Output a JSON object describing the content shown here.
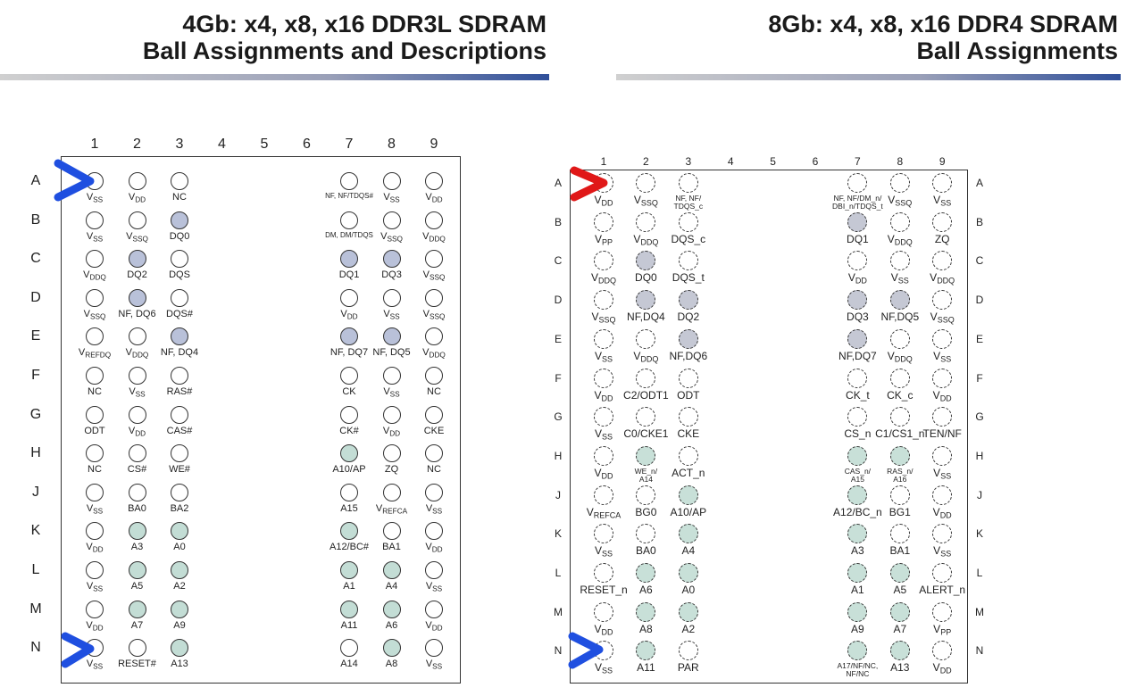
{
  "panels": [
    {
      "title_lines": [
        "4Gb: x4, x8, x16 DDR3L SDRAM",
        "Ball Assignments and Descriptions"
      ],
      "columns": [
        "1",
        "2",
        "3",
        "4",
        "5",
        "6",
        "7",
        "8",
        "9"
      ],
      "ball_border": "solid",
      "rows": [
        {
          "letter": "A",
          "balls": [
            {
              "label": "VSS"
            },
            {
              "label": "VDD"
            },
            {
              "label": "NC"
            },
            null,
            null,
            null,
            {
              "label": "NF, NF/TDQS#"
            },
            {
              "label": "VSS"
            },
            {
              "label": "VDD"
            }
          ]
        },
        {
          "letter": "B",
          "balls": [
            {
              "label": "VSS"
            },
            {
              "label": "VSSQ"
            },
            {
              "label": "DQ0",
              "fill": "#b9c1d9"
            },
            null,
            null,
            null,
            {
              "label": "DM, DM/TDQS"
            },
            {
              "label": "VSSQ"
            },
            {
              "label": "VDDQ"
            }
          ]
        },
        {
          "letter": "C",
          "balls": [
            {
              "label": "VDDQ"
            },
            {
              "label": "DQ2",
              "fill": "#b9c1d9"
            },
            {
              "label": "DQS"
            },
            null,
            null,
            null,
            {
              "label": "DQ1",
              "fill": "#b9c1d9"
            },
            {
              "label": "DQ3",
              "fill": "#b9c1d9"
            },
            {
              "label": "VSSQ"
            }
          ]
        },
        {
          "letter": "D",
          "balls": [
            {
              "label": "VSSQ"
            },
            {
              "label": "NF, DQ6",
              "fill": "#b9c1d9"
            },
            {
              "label": "DQS#"
            },
            null,
            null,
            null,
            {
              "label": "VDD"
            },
            {
              "label": "VSS"
            },
            {
              "label": "VSSQ"
            }
          ]
        },
        {
          "letter": "E",
          "balls": [
            {
              "label": "VREFDQ"
            },
            {
              "label": "VDDQ"
            },
            {
              "label": "NF, DQ4",
              "fill": "#b9c1d9"
            },
            null,
            null,
            null,
            {
              "label": "NF, DQ7",
              "fill": "#b9c1d9"
            },
            {
              "label": "NF, DQ5",
              "fill": "#b9c1d9"
            },
            {
              "label": "VDDQ"
            }
          ]
        },
        {
          "letter": "F",
          "balls": [
            {
              "label": "NC"
            },
            {
              "label": "VSS"
            },
            {
              "label": "RAS#"
            },
            null,
            null,
            null,
            {
              "label": "CK"
            },
            {
              "label": "VSS"
            },
            {
              "label": "NC"
            }
          ]
        },
        {
          "letter": "G",
          "balls": [
            {
              "label": "ODT"
            },
            {
              "label": "VDD"
            },
            {
              "label": "CAS#"
            },
            null,
            null,
            null,
            {
              "label": "CK#"
            },
            {
              "label": "VDD"
            },
            {
              "label": "CKE"
            }
          ]
        },
        {
          "letter": "H",
          "balls": [
            {
              "label": "NC"
            },
            {
              "label": "CS#"
            },
            {
              "label": "WE#"
            },
            null,
            null,
            null,
            {
              "label": "A10/AP",
              "fill": "#c3ddd5"
            },
            {
              "label": "ZQ"
            },
            {
              "label": "NC"
            }
          ]
        },
        {
          "letter": "J",
          "balls": [
            {
              "label": "VSS"
            },
            {
              "label": "BA0"
            },
            {
              "label": "BA2"
            },
            null,
            null,
            null,
            {
              "label": "A15"
            },
            {
              "label": "VREFCA"
            },
            {
              "label": "VSS"
            }
          ]
        },
        {
          "letter": "K",
          "balls": [
            {
              "label": "VDD"
            },
            {
              "label": "A3",
              "fill": "#c3ddd5"
            },
            {
              "label": "A0",
              "fill": "#c3ddd5"
            },
            null,
            null,
            null,
            {
              "label": "A12/BC#",
              "fill": "#c3ddd5"
            },
            {
              "label": "BA1"
            },
            {
              "label": "VDD"
            }
          ]
        },
        {
          "letter": "L",
          "balls": [
            {
              "label": "VSS"
            },
            {
              "label": "A5",
              "fill": "#c3ddd5"
            },
            {
              "label": "A2",
              "fill": "#c3ddd5"
            },
            null,
            null,
            null,
            {
              "label": "A1",
              "fill": "#c3ddd5"
            },
            {
              "label": "A4",
              "fill": "#c3ddd5"
            },
            {
              "label": "VSS"
            }
          ]
        },
        {
          "letter": "M",
          "balls": [
            {
              "label": "VDD"
            },
            {
              "label": "A7",
              "fill": "#c3ddd5"
            },
            {
              "label": "A9",
              "fill": "#c3ddd5"
            },
            null,
            null,
            null,
            {
              "label": "A11",
              "fill": "#c3ddd5"
            },
            {
              "label": "A6",
              "fill": "#c3ddd5"
            },
            {
              "label": "VDD"
            }
          ]
        },
        {
          "letter": "N",
          "balls": [
            {
              "label": "VSS"
            },
            {
              "label": "RESET#"
            },
            {
              "label": "A13",
              "fill": "#c3ddd5"
            },
            null,
            null,
            null,
            {
              "label": "A14"
            },
            {
              "label": "A8",
              "fill": "#c3ddd5"
            },
            {
              "label": "VSS"
            }
          ]
        }
      ]
    },
    {
      "title_lines": [
        "8Gb: x4, x8, x16 DDR4 SDRAM",
        "Ball Assignments"
      ],
      "columns": [
        "1",
        "2",
        "3",
        "4",
        "5",
        "6",
        "7",
        "8",
        "9"
      ],
      "ball_border": "dashed",
      "rows": [
        {
          "letter": "A",
          "balls": [
            {
              "label": "VDD"
            },
            {
              "label": "VSSQ"
            },
            {
              "label": "NF, NF/\nTDQS_c"
            },
            null,
            null,
            null,
            {
              "label": "NF, NF/DM_n/\nDBI_n/TDQS_t"
            },
            {
              "label": "VSSQ"
            },
            {
              "label": "VSS"
            }
          ]
        },
        {
          "letter": "B",
          "balls": [
            {
              "label": "VPP"
            },
            {
              "label": "VDDQ"
            },
            {
              "label": "DQS_c"
            },
            null,
            null,
            null,
            {
              "label": "DQ1",
              "fill": "#c5c8d4"
            },
            {
              "label": "VDDQ"
            },
            {
              "label": "ZQ"
            }
          ]
        },
        {
          "letter": "C",
          "balls": [
            {
              "label": "VDDQ"
            },
            {
              "label": "DQ0",
              "fill": "#c5c8d4"
            },
            {
              "label": "DQS_t"
            },
            null,
            null,
            null,
            {
              "label": "VDD"
            },
            {
              "label": "VSS"
            },
            {
              "label": "VDDQ"
            }
          ]
        },
        {
          "letter": "D",
          "balls": [
            {
              "label": "VSSQ"
            },
            {
              "label": "NF,DQ4",
              "fill": "#c5c8d4"
            },
            {
              "label": "DQ2",
              "fill": "#c5c8d4"
            },
            null,
            null,
            null,
            {
              "label": "DQ3",
              "fill": "#c5c8d4"
            },
            {
              "label": "NF,DQ5",
              "fill": "#c5c8d4"
            },
            {
              "label": "VSSQ"
            }
          ]
        },
        {
          "letter": "E",
          "balls": [
            {
              "label": "VSS"
            },
            {
              "label": "VDDQ"
            },
            {
              "label": "NF,DQ6",
              "fill": "#c5c8d4"
            },
            null,
            null,
            null,
            {
              "label": "NF,DQ7",
              "fill": "#c5c8d4"
            },
            {
              "label": "VDDQ"
            },
            {
              "label": "VSS"
            }
          ]
        },
        {
          "letter": "F",
          "balls": [
            {
              "label": "VDD"
            },
            {
              "label": "C2/ODT1"
            },
            {
              "label": "ODT"
            },
            null,
            null,
            null,
            {
              "label": "CK_t"
            },
            {
              "label": "CK_c"
            },
            {
              "label": "VDD"
            }
          ]
        },
        {
          "letter": "G",
          "balls": [
            {
              "label": "VSS"
            },
            {
              "label": "C0/CKE1"
            },
            {
              "label": "CKE"
            },
            null,
            null,
            null,
            {
              "label": "CS_n"
            },
            {
              "label": "C1/CS1_n"
            },
            {
              "label": "TEN/NF"
            }
          ]
        },
        {
          "letter": "H",
          "balls": [
            {
              "label": "VDD"
            },
            {
              "label": "WE_n/\nA14",
              "fill": "#c8e0d8"
            },
            {
              "label": "ACT_n"
            },
            null,
            null,
            null,
            {
              "label": "CAS_n/\nA15",
              "fill": "#c8e0d8"
            },
            {
              "label": "RAS_n/\nA16",
              "fill": "#c8e0d8"
            },
            {
              "label": "VSS"
            }
          ]
        },
        {
          "letter": "J",
          "balls": [
            {
              "label": "VREFCA"
            },
            {
              "label": "BG0"
            },
            {
              "label": "A10/AP",
              "fill": "#c8e0d8"
            },
            null,
            null,
            null,
            {
              "label": "A12/BC_n",
              "fill": "#c8e0d8"
            },
            {
              "label": "BG1"
            },
            {
              "label": "VDD"
            }
          ]
        },
        {
          "letter": "K",
          "balls": [
            {
              "label": "VSS"
            },
            {
              "label": "BA0"
            },
            {
              "label": "A4",
              "fill": "#c8e0d8"
            },
            null,
            null,
            null,
            {
              "label": "A3",
              "fill": "#c8e0d8"
            },
            {
              "label": "BA1"
            },
            {
              "label": "VSS"
            }
          ]
        },
        {
          "letter": "L",
          "balls": [
            {
              "label": "RESET_n"
            },
            {
              "label": "A6",
              "fill": "#c8e0d8"
            },
            {
              "label": "A0",
              "fill": "#c8e0d8"
            },
            null,
            null,
            null,
            {
              "label": "A1",
              "fill": "#c8e0d8"
            },
            {
              "label": "A5",
              "fill": "#c8e0d8"
            },
            {
              "label": "ALERT_n"
            }
          ]
        },
        {
          "letter": "M",
          "balls": [
            {
              "label": "VDD"
            },
            {
              "label": "A8",
              "fill": "#c8e0d8"
            },
            {
              "label": "A2",
              "fill": "#c8e0d8"
            },
            null,
            null,
            null,
            {
              "label": "A9",
              "fill": "#c8e0d8"
            },
            {
              "label": "A7",
              "fill": "#c8e0d8"
            },
            {
              "label": "VPP"
            }
          ]
        },
        {
          "letter": "N",
          "balls": [
            {
              "label": "VSS"
            },
            {
              "label": "A11",
              "fill": "#c8e0d8"
            },
            {
              "label": "PAR"
            },
            null,
            null,
            null,
            {
              "label": "A17/NF/NC,\nNF/NC",
              "fill": "#c8e0d8"
            },
            {
              "label": "A13",
              "fill": "#c8e0d8"
            },
            {
              "label": "VDD"
            }
          ]
        }
      ]
    }
  ]
}
